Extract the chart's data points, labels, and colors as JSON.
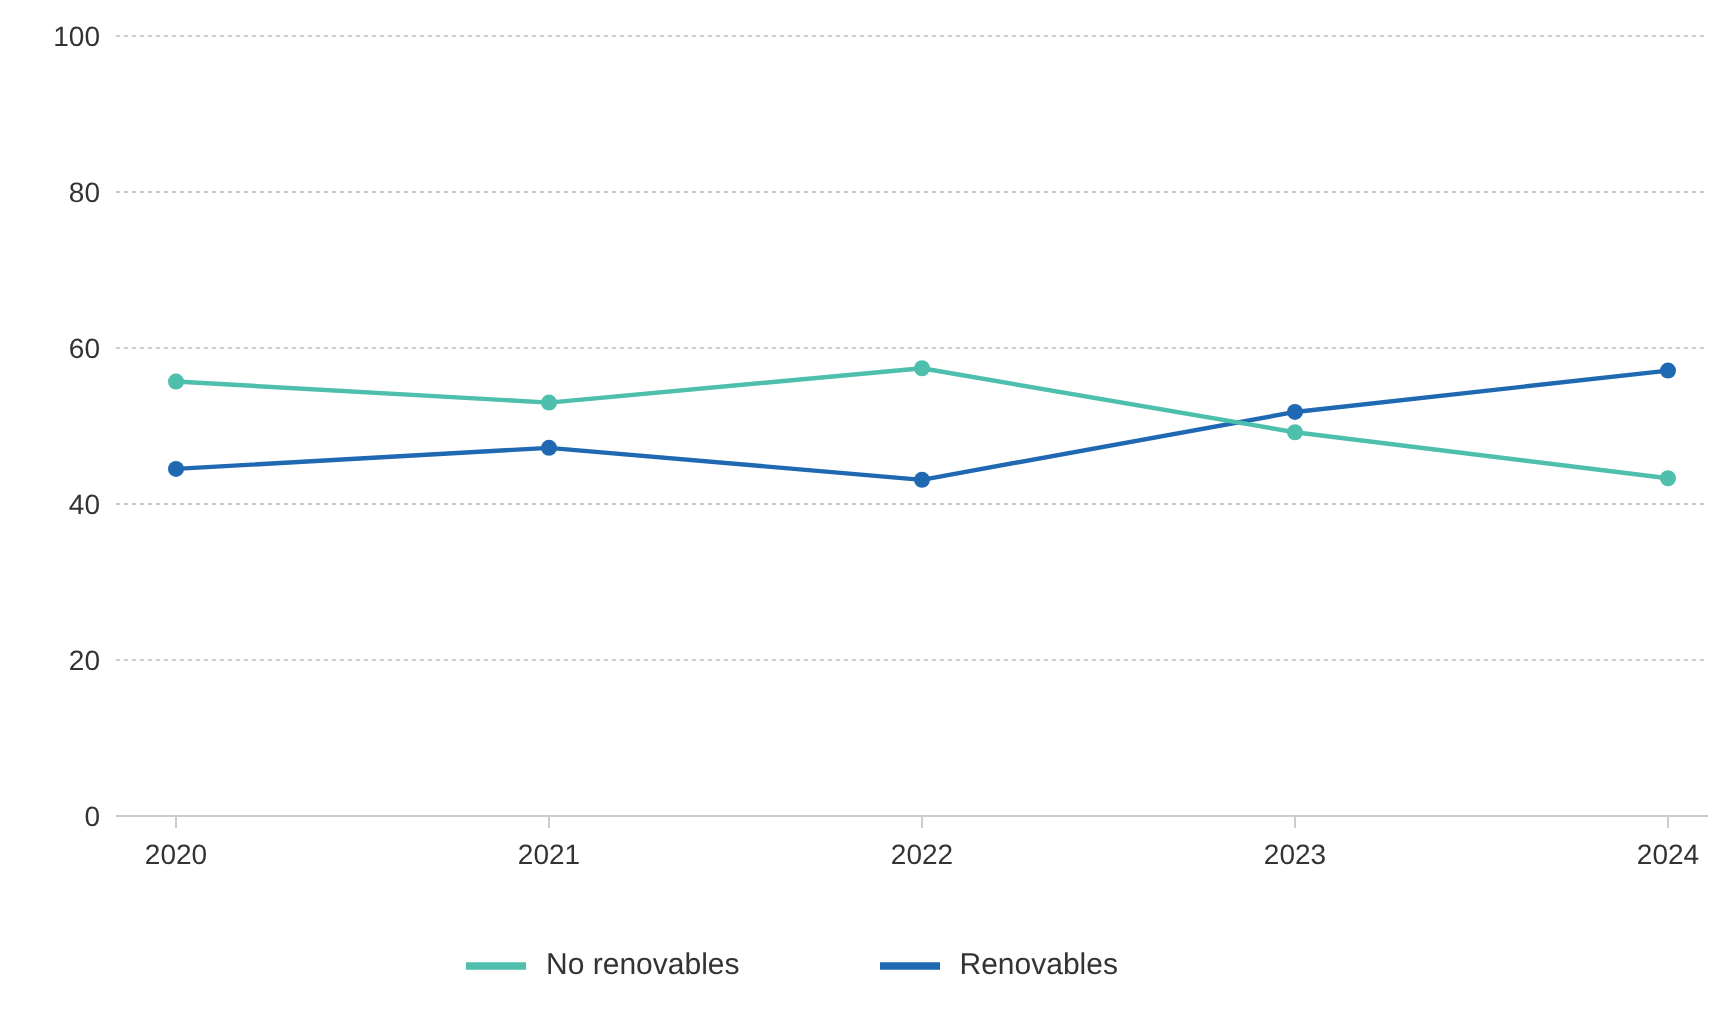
{
  "chart_data": {
    "type": "line",
    "categories": [
      "2020",
      "2021",
      "2022",
      "2023",
      "2024"
    ],
    "series": [
      {
        "name": "Renovables",
        "color": "#1f68b2",
        "values": [
          44.5,
          47.2,
          43.1,
          51.8,
          57.1
        ]
      },
      {
        "name": "No renovables",
        "color": "#4dbfac",
        "values": [
          55.7,
          53.0,
          57.4,
          49.2,
          43.3
        ]
      }
    ],
    "ylim": [
      0,
      100
    ],
    "yticks": [
      0,
      20,
      40,
      60,
      80,
      100
    ],
    "grid": "y",
    "legend": "bottom",
    "marker": "circle",
    "line_style": "solid"
  }
}
